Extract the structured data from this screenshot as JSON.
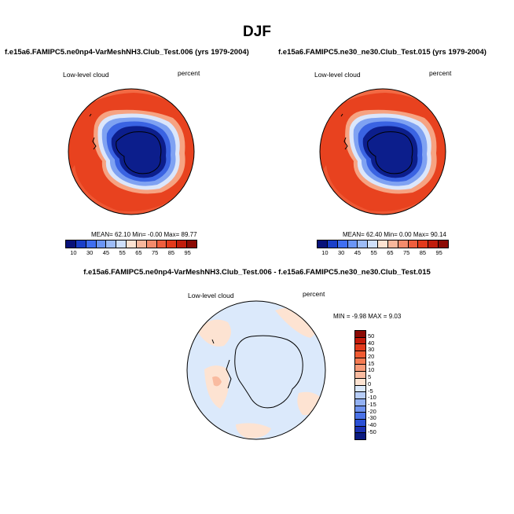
{
  "title": "DJF",
  "panel_left": {
    "run_title": "f.e15a6.FAMIPC5.ne0np4-VarMeshNH3.Club_Test.006 (yrs 1979-2004)",
    "variable": "Low-level cloud",
    "units": "percent",
    "stats": "MEAN=   62.10  Min=  -0.00  Max=  89.77"
  },
  "panel_right": {
    "run_title": "f.e15a6.FAMIPC5.ne30_ne30.Club_Test.015 (yrs 1979-2004)",
    "variable": "Low-level cloud",
    "units": "percent",
    "stats": "MEAN=   62.40  Min=   0.00  Max=  90.14"
  },
  "panel_diff": {
    "run_title": "f.e15a6.FAMIPC5.ne0np4-VarMeshNH3.Club_Test.006 - f.e15a6.FAMIPC5.ne30_ne30.Club_Test.015",
    "variable": "Low-level cloud",
    "units": "percent",
    "stats": "MIN =  -9.98 MAX =   9.03"
  },
  "colorbar_main": {
    "labels": [
      "10",
      "30",
      "45",
      "55",
      "65",
      "75",
      "85",
      "95"
    ],
    "colors": [
      "#08127a",
      "#1a3fc8",
      "#3f6ef0",
      "#6b95f5",
      "#9dbcf7",
      "#cfe0fb",
      "#fde3d2",
      "#f8b79c",
      "#f48b6c",
      "#ee5e3e",
      "#e23a1c",
      "#c01d0c",
      "#8b0a04"
    ]
  },
  "colorbar_diff": {
    "labels": [
      "50",
      "40",
      "30",
      "20",
      "15",
      "10",
      "5",
      "0",
      "-5",
      "-10",
      "-15",
      "-20",
      "-30",
      "-40",
      "-50"
    ],
    "colors": [
      "#8b0a04",
      "#c41a0a",
      "#e23a1c",
      "#f05a32",
      "#f47a52",
      "#f69a78",
      "#f9bba0",
      "#fde3d2",
      "#dbe9fb",
      "#b7cdf7",
      "#93b1f3",
      "#6e92ef",
      "#4a72e8",
      "#2a50d6",
      "#1a30b0",
      "#0a1a80"
    ]
  }
}
